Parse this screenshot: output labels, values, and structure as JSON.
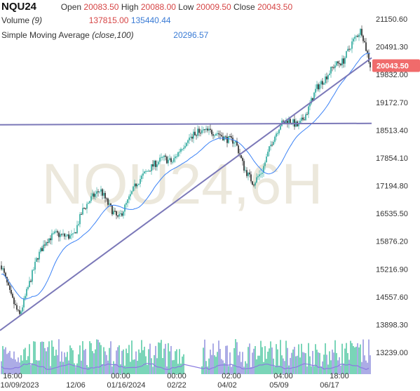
{
  "legend": {
    "symbol": "NQU24",
    "open_label": "Open",
    "open": "20083.50",
    "high_label": "High",
    "high": "20088.00",
    "low_label": "Low",
    "low": "20009.50",
    "close_label": "Close",
    "close": "20043.50",
    "volume_label": "Volume",
    "volume_param": "(9)",
    "volume_value_1": "137815.00",
    "volume_value_2": "135440.44",
    "sma_label": "Simple Moving Average",
    "sma_param": "(close,100)",
    "sma_value": "20296.57"
  },
  "watermark": "NQU24,6H",
  "colors": {
    "up": "#26a69a",
    "down": "#222222",
    "sma": "#3b82f6",
    "trendline": "#7b78b8",
    "last_price_badge": "#f06b6b",
    "volume_up": "#2ebc8f",
    "volume_down": "#7b7bd8"
  },
  "chart_data": {
    "type": "candlestick",
    "symbol": "NQU24",
    "ylim": [
      13239.0,
      21150.6
    ],
    "y_ticks": [
      "21150.60",
      "20491.30",
      "19832.00",
      "19172.70",
      "18513.40",
      "17854.10",
      "17194.80",
      "16535.50",
      "15876.20",
      "15216.90",
      "14557.60",
      "13898.30",
      "13239.00"
    ],
    "x_ticks": [
      "16:00",
      "00:00",
      "00:00",
      "02:00",
      "04:00",
      "18:00"
    ],
    "x_dates": [
      "10/09/2023",
      "12/06",
      "01/16/2024",
      "02/22",
      "04/02",
      "05/09",
      "06/17"
    ],
    "last_price": "20043.50",
    "horizontal_line": 18640,
    "trendline": {
      "start": [
        "10/09/2023",
        13760
      ],
      "end": [
        "latest",
        20230
      ]
    },
    "price_path": [
      [
        "10/09/2023",
        15300
      ],
      [
        "10/16",
        14600
      ],
      [
        "10/23",
        14100
      ],
      [
        "10/30",
        14800
      ],
      [
        "11/06",
        15500
      ],
      [
        "11/13",
        15900
      ],
      [
        "11/20",
        16050
      ],
      [
        "11/27",
        16000
      ],
      [
        "12/06",
        15980
      ],
      [
        "12/13",
        16600
      ],
      [
        "12/20",
        16900
      ],
      [
        "12/27",
        17100
      ],
      [
        "01/03",
        16700
      ],
      [
        "01/10",
        16400
      ],
      [
        "01/16/2024",
        16800
      ],
      [
        "01/23",
        17250
      ],
      [
        "01/30",
        17500
      ],
      [
        "02/06",
        17700
      ],
      [
        "02/13",
        17850
      ],
      [
        "02/22",
        17750
      ],
      [
        "02/29",
        18100
      ],
      [
        "03/07",
        18350
      ],
      [
        "03/14",
        18500
      ],
      [
        "03/21",
        18480
      ],
      [
        "03/28",
        18450
      ],
      [
        "04/02",
        18300
      ],
      [
        "04/09",
        18250
      ],
      [
        "04/16",
        17600
      ],
      [
        "04/23",
        17250
      ],
      [
        "04/30",
        17550
      ],
      [
        "05/09",
        18200
      ],
      [
        "05/16",
        18650
      ],
      [
        "05/23",
        18750
      ],
      [
        "05/30",
        18600
      ],
      [
        "06/06",
        18950
      ],
      [
        "06/13",
        19500
      ],
      [
        "06/17",
        19750
      ],
      [
        "06/24",
        20050
      ],
      [
        "07/01",
        20150
      ],
      [
        "07/08",
        20600
      ],
      [
        "07/11",
        20900
      ],
      [
        "latest",
        20043.5
      ]
    ],
    "series": [
      {
        "name": "NQU24",
        "kind": "price"
      },
      {
        "name": "Simple Moving Average",
        "kind": "sma",
        "last": 20296.57
      },
      {
        "name": "Volume",
        "kind": "volume",
        "last": 137815.0
      }
    ]
  }
}
